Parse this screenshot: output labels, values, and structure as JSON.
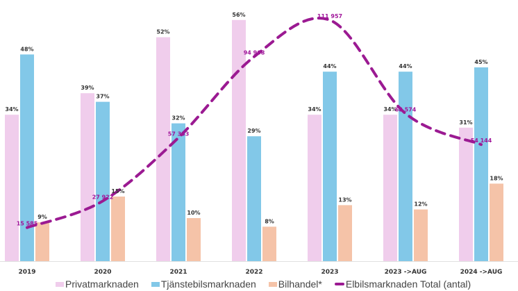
{
  "chart_data": {
    "type": "bar",
    "categories": [
      "2019",
      "2020",
      "2021",
      "2022",
      "2023",
      "2023 ->AUG",
      "2024 ->AUG"
    ],
    "series": [
      {
        "name": "Privatmarknaden",
        "color": "#f0cdec",
        "values": [
          34,
          39,
          52,
          56,
          34,
          34,
          31
        ],
        "labels": [
          "34%",
          "39%",
          "52%",
          "56%",
          "34%",
          "34%",
          "31%"
        ]
      },
      {
        "name": "Tjänstebilsmarknaden",
        "color": "#82c8e8",
        "values": [
          48,
          37,
          32,
          29,
          44,
          44,
          45
        ],
        "labels": [
          "48%",
          "37%",
          "32%",
          "29%",
          "44%",
          "44%",
          "45%"
        ]
      },
      {
        "name": "Bilhandel*",
        "color": "#f5c3a8",
        "values": [
          9,
          15,
          10,
          8,
          13,
          12,
          18
        ],
        "labels": [
          "9%",
          "15%",
          "10%",
          "8%",
          "13%",
          "12%",
          "18%"
        ]
      }
    ],
    "line_series": {
      "name": "Elbilsmarknaden Total (antal)",
      "color": "#9b1a92",
      "style": "dashed",
      "values": [
        15585,
        27922,
        57333,
        94968,
        111957,
        68574,
        54144
      ],
      "labels": [
        "15 585",
        "27 922",
        "57 333",
        "94 968",
        "111 957",
        "68 574",
        "54 144"
      ]
    },
    "ylim": [
      0,
      60
    ],
    "legend_position": "bottom"
  }
}
